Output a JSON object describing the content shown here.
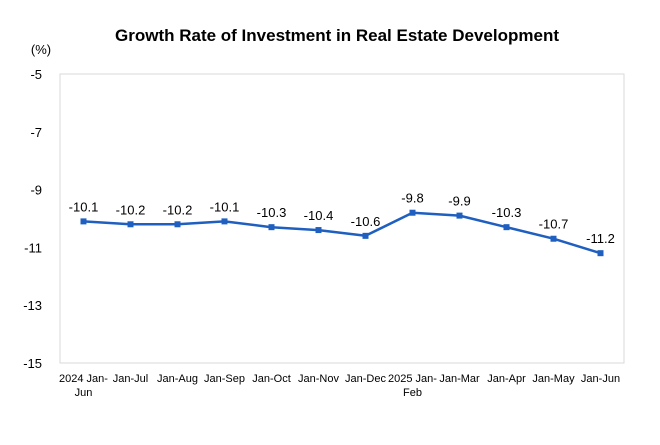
{
  "chart_data": {
    "type": "line",
    "title": "Growth Rate of Investment in Real Estate Development",
    "unit": "(%)",
    "xlabel": "",
    "ylabel": "",
    "categories": [
      [
        "2024 Jan-",
        "Jun"
      ],
      [
        "Jan-Jul"
      ],
      [
        "Jan-Aug"
      ],
      [
        "Jan-Sep"
      ],
      [
        "Jan-Oct"
      ],
      [
        "Jan-Nov"
      ],
      [
        "Jan-Dec"
      ],
      [
        "2025 Jan-",
        "Feb"
      ],
      [
        "Jan-Mar"
      ],
      [
        "Jan-Apr"
      ],
      [
        "Jan-May"
      ],
      [
        "Jan-Jun"
      ]
    ],
    "series": [
      {
        "values": [
          -10.1,
          -10.2,
          -10.2,
          -10.1,
          -10.3,
          -10.4,
          -10.6,
          -9.8,
          -9.9,
          -10.3,
          -10.7,
          -11.2
        ],
        "data_labels": [
          "-10.1",
          "-10.2",
          "-10.2",
          "-10.1",
          "-10.3",
          "-10.4",
          "-10.6",
          "-9.8",
          "-9.9",
          "-10.3",
          "-10.7",
          "-11.2"
        ],
        "color": "#1f5fbf",
        "marker": "square"
      }
    ],
    "ylim": [
      -15,
      -5
    ],
    "yticks": [
      -5,
      -7,
      -9,
      -11,
      -13,
      -15
    ],
    "grid": false,
    "legend": "none"
  }
}
